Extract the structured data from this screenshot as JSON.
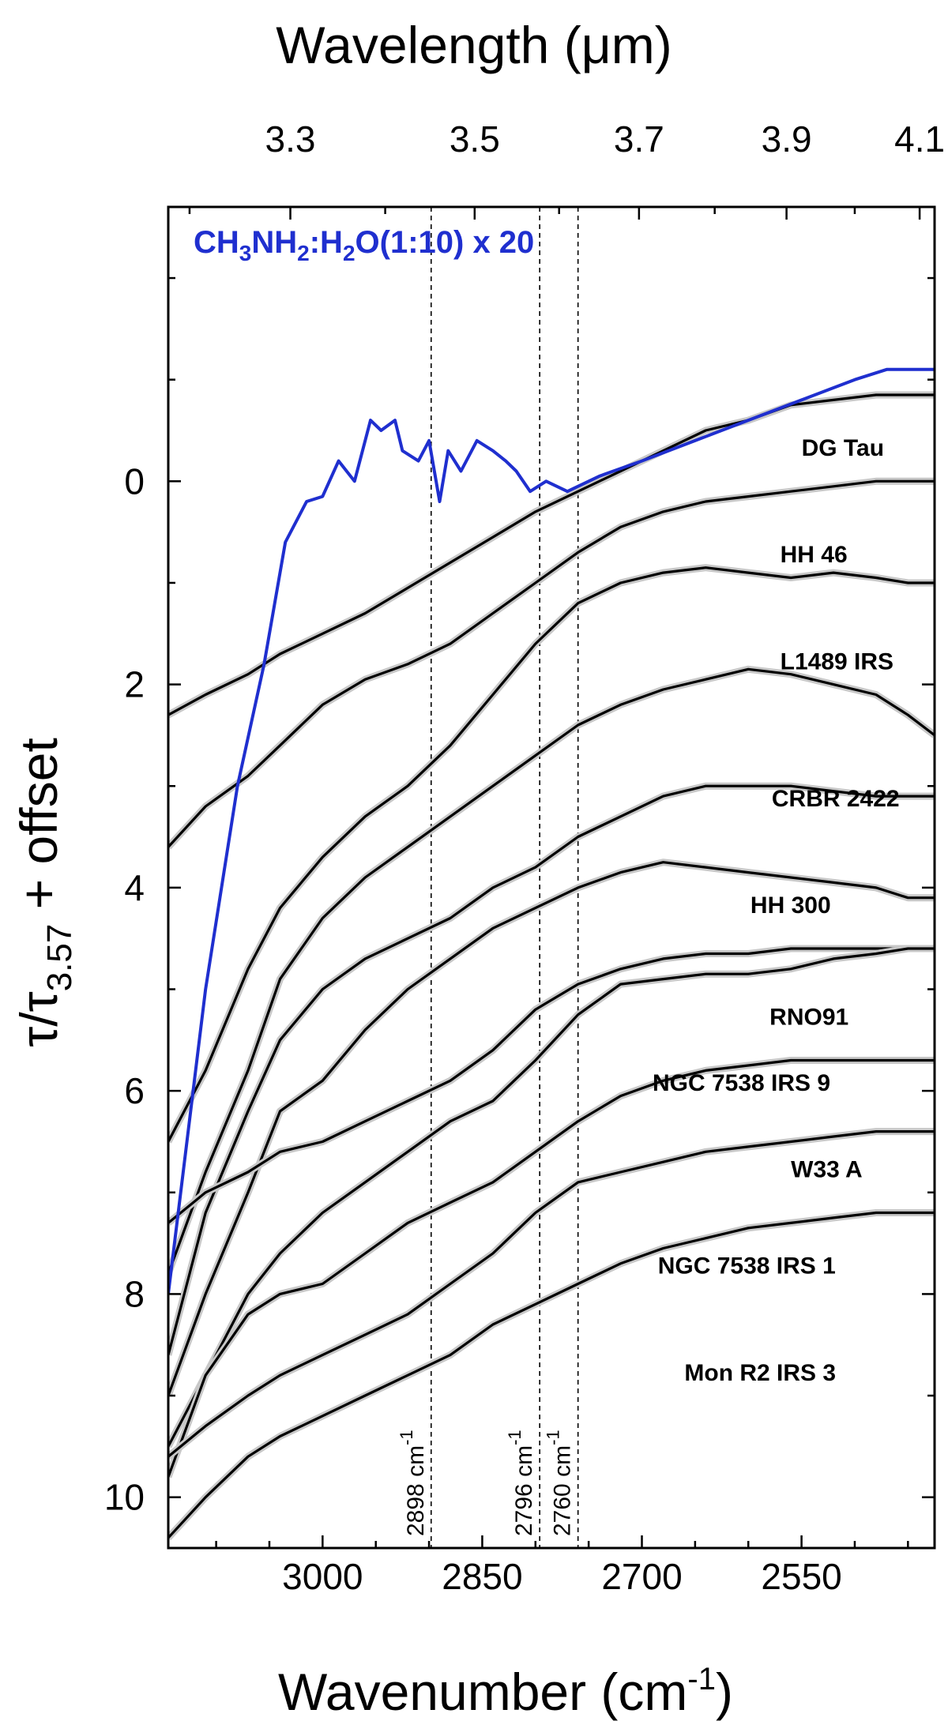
{
  "chart_data": {
    "type": "line",
    "xlabel": "Wavenumber (cm",
    "xlabel_sup": "-1",
    "xlabel_end": ")",
    "x2label": "Wavelength (μm)",
    "ylabel": "τ/τ",
    "ylabel_sub": "3.57",
    "ylabel_end": " + offset",
    "xlim": [
      3145,
      2425
    ],
    "ylim": [
      10.5,
      -2.7
    ],
    "y_inverted": true,
    "x_ticks": [
      3000,
      2850,
      2700,
      2550
    ],
    "x_tick_labels": [
      "3000",
      "2850",
      "2700",
      "2550"
    ],
    "x2_ticks": [
      3.3,
      3.5,
      3.7,
      3.9,
      4.1
    ],
    "x2_tick_labels": [
      "3.3",
      "3.5",
      "3.7",
      "3.9",
      "4.1"
    ],
    "y_ticks": [
      0,
      2,
      4,
      6,
      8,
      10
    ],
    "y_tick_labels": [
      "0",
      "2",
      "4",
      "6",
      "8",
      "10"
    ],
    "reference": {
      "name": "CH3NH2:H2O(1:10)  x 20",
      "label_parts": [
        "CH",
        "3",
        "NH",
        "2",
        ":H",
        "2",
        "O(1:10)  x 20"
      ],
      "color": "#1f2fcf",
      "x": [
        3145,
        3110,
        3080,
        3055,
        3035,
        3015,
        3000,
        2985,
        2970,
        2955,
        2945,
        2932,
        2925,
        2910,
        2900,
        2890,
        2882,
        2870,
        2855,
        2840,
        2828,
        2818,
        2805,
        2790,
        2770,
        2740,
        2700,
        2650,
        2600,
        2550,
        2500,
        2470,
        2425
      ],
      "y": [
        8.0,
        5.0,
        3.0,
        1.8,
        0.6,
        0.2,
        0.15,
        -0.2,
        0.0,
        -0.6,
        -0.5,
        -0.6,
        -0.3,
        -0.2,
        -0.4,
        0.2,
        -0.3,
        -0.1,
        -0.4,
        -0.3,
        -0.2,
        -0.1,
        0.1,
        0.0,
        0.1,
        -0.05,
        -0.2,
        -0.4,
        -0.6,
        -0.8,
        -1.0,
        -1.1,
        -1.1
      ]
    },
    "vlines": [
      {
        "x": 2898,
        "label": "2898 cm",
        "sup": "-1"
      },
      {
        "x": 2796,
        "label": "2796 cm",
        "sup": "-1"
      },
      {
        "x": 2760,
        "label": "2760 cm",
        "sup": "-1"
      }
    ],
    "series": [
      {
        "name": "DG Tau",
        "x": [
          3145,
          3110,
          3070,
          3040,
          3000,
          2960,
          2920,
          2880,
          2840,
          2800,
          2760,
          2720,
          2680,
          2640,
          2600,
          2560,
          2520,
          2480,
          2450,
          2425
        ],
        "y": [
          2.3,
          2.1,
          1.9,
          1.7,
          1.5,
          1.3,
          1.05,
          0.8,
          0.55,
          0.3,
          0.1,
          -0.1,
          -0.3,
          -0.5,
          -0.6,
          -0.75,
          -0.8,
          -0.85,
          -0.85,
          -0.85
        ]
      },
      {
        "name": "HH 46",
        "x": [
          3145,
          3110,
          3070,
          3040,
          3000,
          2960,
          2920,
          2880,
          2840,
          2800,
          2760,
          2720,
          2680,
          2640,
          2600,
          2560,
          2520,
          2480,
          2450,
          2425
        ],
        "y": [
          3.6,
          3.2,
          2.9,
          2.6,
          2.2,
          1.95,
          1.8,
          1.6,
          1.3,
          1.0,
          0.7,
          0.45,
          0.3,
          0.2,
          0.15,
          0.1,
          0.05,
          0.0,
          0.0,
          0.0
        ]
      },
      {
        "name": "L1489 IRS",
        "x": [
          3145,
          3110,
          3070,
          3040,
          3000,
          2960,
          2920,
          2880,
          2840,
          2800,
          2760,
          2720,
          2680,
          2640,
          2600,
          2560,
          2520,
          2480,
          2450,
          2425
        ],
        "y": [
          6.5,
          5.8,
          4.8,
          4.2,
          3.7,
          3.3,
          3.0,
          2.6,
          2.1,
          1.6,
          1.2,
          1.0,
          0.9,
          0.85,
          0.9,
          0.95,
          0.9,
          0.95,
          1.0,
          1.0
        ]
      },
      {
        "name": "CRBR 2422",
        "x": [
          3145,
          3110,
          3070,
          3040,
          3000,
          2960,
          2920,
          2880,
          2840,
          2800,
          2760,
          2720,
          2680,
          2640,
          2600,
          2560,
          2520,
          2480,
          2450,
          2425
        ],
        "y": [
          7.8,
          6.8,
          5.8,
          4.9,
          4.3,
          3.9,
          3.6,
          3.3,
          3.0,
          2.7,
          2.4,
          2.2,
          2.05,
          1.95,
          1.85,
          1.9,
          2.0,
          2.1,
          2.3,
          2.5
        ]
      },
      {
        "name": "HH 300",
        "x": [
          3145,
          3110,
          3070,
          3040,
          3000,
          2960,
          2920,
          2880,
          2840,
          2800,
          2760,
          2720,
          2680,
          2640,
          2600,
          2560,
          2520,
          2480,
          2450,
          2425
        ],
        "y": [
          8.6,
          7.2,
          6.2,
          5.5,
          5.0,
          4.7,
          4.5,
          4.3,
          4.0,
          3.8,
          3.5,
          3.3,
          3.1,
          3.0,
          3.0,
          3.0,
          3.05,
          3.1,
          3.1,
          3.1
        ]
      },
      {
        "name": "RNO91",
        "x": [
          3145,
          3110,
          3070,
          3040,
          3000,
          2960,
          2920,
          2880,
          2840,
          2800,
          2760,
          2720,
          2680,
          2640,
          2600,
          2560,
          2520,
          2480,
          2450,
          2425
        ],
        "y": [
          9.0,
          8.0,
          7.0,
          6.2,
          5.9,
          5.4,
          5.0,
          4.7,
          4.4,
          4.2,
          4.0,
          3.85,
          3.75,
          3.8,
          3.85,
          3.9,
          3.95,
          4.0,
          4.1,
          4.1
        ]
      },
      {
        "name": "NGC 7538 IRS 9",
        "x": [
          3145,
          3110,
          3070,
          3040,
          3000,
          2960,
          2920,
          2880,
          2840,
          2800,
          2760,
          2720,
          2680,
          2640,
          2600,
          2560,
          2520,
          2480,
          2450,
          2425
        ],
        "y": [
          7.3,
          7.0,
          6.8,
          6.6,
          6.5,
          6.3,
          6.1,
          5.9,
          5.6,
          5.2,
          4.95,
          4.8,
          4.7,
          4.65,
          4.65,
          4.6,
          4.6,
          4.6,
          4.6,
          4.6
        ]
      },
      {
        "name": "W33 A",
        "x": [
          3145,
          3110,
          3070,
          3040,
          3000,
          2960,
          2920,
          2880,
          2840,
          2800,
          2760,
          2720,
          2680,
          2640,
          2600,
          2560,
          2520,
          2480,
          2450,
          2425
        ],
        "y": [
          9.5,
          8.8,
          8.0,
          7.6,
          7.2,
          6.9,
          6.6,
          6.3,
          6.1,
          5.7,
          5.25,
          4.95,
          4.9,
          4.85,
          4.85,
          4.8,
          4.7,
          4.65,
          4.6,
          4.6
        ]
      },
      {
        "name": "NGC 7538 IRS 1",
        "x": [
          3145,
          3110,
          3070,
          3040,
          3000,
          2960,
          2920,
          2880,
          2840,
          2800,
          2760,
          2720,
          2680,
          2640,
          2600,
          2560,
          2520,
          2480,
          2450,
          2425
        ],
        "y": [
          9.8,
          8.8,
          8.2,
          8.0,
          7.9,
          7.6,
          7.3,
          7.1,
          6.9,
          6.6,
          6.3,
          6.05,
          5.9,
          5.8,
          5.75,
          5.7,
          5.7,
          5.7,
          5.7,
          5.7
        ]
      },
      {
        "name": "Mon R2 IRS 3",
        "x": [
          3145,
          3110,
          3070,
          3040,
          3000,
          2960,
          2920,
          2880,
          2840,
          2800,
          2760,
          2720,
          2680,
          2640,
          2600,
          2560,
          2520,
          2480,
          2450,
          2425
        ],
        "y": [
          9.6,
          9.3,
          9.0,
          8.8,
          8.6,
          8.4,
          8.2,
          7.9,
          7.6,
          7.2,
          6.9,
          6.8,
          6.7,
          6.6,
          6.55,
          6.5,
          6.45,
          6.4,
          6.4,
          6.4
        ]
      },
      {
        "name": "",
        "x": [
          3145,
          3110,
          3070,
          3040,
          3000,
          2960,
          2920,
          2880,
          2840,
          2800,
          2760,
          2720,
          2680,
          2640,
          2600,
          2560,
          2520,
          2480,
          2450,
          2425
        ],
        "y": [
          10.4,
          10.0,
          9.6,
          9.4,
          9.2,
          9.0,
          8.8,
          8.6,
          8.3,
          8.1,
          7.9,
          7.7,
          7.55,
          7.45,
          7.35,
          7.3,
          7.25,
          7.2,
          7.2,
          7.2
        ]
      }
    ],
    "source_labels": [
      {
        "text": "DG Tau",
        "x": 2550,
        "y": -0.25
      },
      {
        "text": "HH 46",
        "x": 2570,
        "y": 0.8
      },
      {
        "text": "L1489 IRS",
        "x": 2570,
        "y": 1.85
      },
      {
        "text": "CRBR 2422",
        "x": 2578,
        "y": 3.2
      },
      {
        "text": "HH 300",
        "x": 2598,
        "y": 4.25
      },
      {
        "text": "RNO91",
        "x": 2580,
        "y": 5.35
      },
      {
        "text": "NGC 7538 IRS 9",
        "x": 2690,
        "y": 6.0
      },
      {
        "text": "W33 A",
        "x": 2560,
        "y": 6.85
      },
      {
        "text": "NGC 7538 IRS 1",
        "x": 2685,
        "y": 7.8
      },
      {
        "text": "Mon R2 IRS 3",
        "x": 2660,
        "y": 8.85
      }
    ]
  }
}
